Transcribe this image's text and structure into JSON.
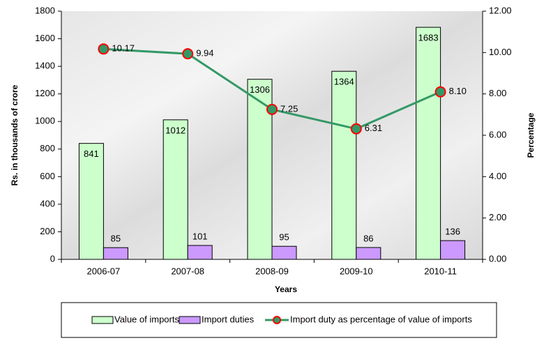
{
  "chart_data": {
    "type": "bar_line",
    "categories": [
      "2006-07",
      "2007-08",
      "2008-09",
      "2009-10",
      "2010-11"
    ],
    "series": [
      {
        "name": "Value of imports",
        "type": "bar",
        "color": "#ccffcc",
        "values": [
          841,
          1012,
          1306,
          1364,
          1683
        ]
      },
      {
        "name": "Import duties",
        "type": "bar",
        "color": "#cc99ff",
        "values": [
          85,
          101,
          95,
          86,
          136
        ]
      },
      {
        "name": "Import duty as percentage of value of imports",
        "type": "line",
        "axis": "y2",
        "color": "#339966",
        "marker_color": "#ff0000",
        "values": [
          10.17,
          9.94,
          7.25,
          6.31,
          8.1
        ],
        "value_labels": [
          "10.17",
          "9.94",
          "7.25",
          "6.31",
          "8.10"
        ]
      }
    ],
    "xlabel": "Years",
    "ylabel": "Rs. in thousands of crore",
    "y2label": "Percentage",
    "ylim": [
      0,
      1800
    ],
    "yticks": [
      0,
      200,
      400,
      600,
      800,
      1000,
      1200,
      1400,
      1600,
      1800
    ],
    "y2lim": [
      0,
      12
    ],
    "y2ticks": [
      {
        "value": 0,
        "label": "0.00"
      },
      {
        "value": 2,
        "label": "2.00"
      },
      {
        "value": 4,
        "label": "4.00"
      },
      {
        "value": 6,
        "label": "6.00"
      },
      {
        "value": 8,
        "label": "8.00"
      },
      {
        "value": 10,
        "label": "10.00"
      },
      {
        "value": 12,
        "label": "12.00"
      }
    ],
    "legend": "bottom",
    "grid": false
  }
}
